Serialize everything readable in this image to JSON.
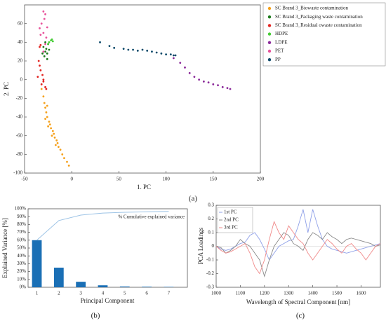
{
  "chart_data": [
    {
      "type": "scatter",
      "xlabel": "1. PC",
      "ylabel": "2. PC",
      "caption": "(a)",
      "xlim": [
        -50,
        200
      ],
      "ylim": [
        -100,
        80
      ],
      "xticks": [
        -50,
        0,
        50,
        100,
        150,
        200
      ],
      "yticks": [
        -100,
        -80,
        -60,
        -40,
        -20,
        0,
        20,
        40,
        60
      ],
      "legend": "outside right",
      "series": [
        {
          "name": "SC Brand 3_Biowaste contamination",
          "color": "#f5a01a",
          "x": [
            -32,
            -30,
            -29,
            -28,
            -27,
            -26,
            -24,
            -25,
            -22,
            -20,
            -21,
            -18,
            -16,
            -17,
            -14,
            -12,
            -10,
            -8,
            -5,
            -3,
            -28,
            -23,
            -19,
            -26,
            -15
          ],
          "y": [
            -10,
            -18,
            -25,
            -30,
            -35,
            -40,
            -45,
            -50,
            -52,
            -55,
            -60,
            -62,
            -65,
            -70,
            -72,
            -75,
            -80,
            -84,
            -88,
            -92,
            -42,
            -48,
            -58,
            -28,
            -68
          ]
        },
        {
          "name": "SC Brand 3_Packaging waste contamination",
          "color": "#1b7a1b",
          "x": [
            -30,
            -28,
            -26,
            -29,
            -27,
            -25,
            -31,
            -26,
            -28,
            -24
          ],
          "y": [
            35,
            30,
            28,
            25,
            33,
            38,
            28,
            22,
            40,
            32
          ]
        },
        {
          "name": "SC Brand 3_Residual owaste contamination",
          "color": "#e32420",
          "x": [
            -33,
            -34,
            -35,
            -33,
            -36,
            -30,
            -32,
            -28,
            -34,
            -31,
            -27,
            -30
          ],
          "y": [
            37,
            35,
            20,
            10,
            3,
            0,
            -5,
            -8,
            15,
            5,
            -10,
            -2
          ]
        },
        {
          "name": "HDPE",
          "color": "#45cc35",
          "x": [
            -22,
            -20,
            -24,
            -21,
            -25
          ],
          "y": [
            42,
            41,
            40,
            43,
            38
          ]
        },
        {
          "name": "LDPE",
          "color": "#8b2a9a",
          "x": [
            108,
            115,
            120,
            125,
            130,
            135,
            140,
            145,
            150,
            155,
            160,
            165,
            168
          ],
          "y": [
            23,
            18,
            13,
            7,
            3,
            0,
            -2,
            -3,
            -5,
            -6,
            -8,
            -9,
            -10
          ]
        },
        {
          "name": "PET",
          "color": "#e8529a",
          "x": [
            -30,
            -28,
            -32,
            -34,
            -30,
            -29,
            -27,
            -33,
            -26,
            -28,
            -30
          ],
          "y": [
            73,
            70,
            60,
            55,
            50,
            65,
            45,
            48,
            56,
            38,
            30
          ]
        },
        {
          "name": "PP",
          "color": "#0d4a6a",
          "x": [
            30,
            40,
            45,
            55,
            60,
            65,
            70,
            75,
            80,
            85,
            90,
            95,
            100,
            105,
            108,
            110
          ],
          "y": [
            40,
            36,
            34,
            33,
            32,
            32,
            31,
            32,
            31,
            30,
            29,
            28,
            27,
            27,
            26,
            26
          ]
        }
      ]
    },
    {
      "type": "bar",
      "xlabel": "Principal Component",
      "ylabel": "Explained Variance [%]",
      "caption": "(b)",
      "categories": [
        "1",
        "2",
        "3",
        "4",
        "5",
        "6",
        "7"
      ],
      "values": [
        60,
        25,
        7,
        2.5,
        1,
        0.7,
        0.5
      ],
      "color": "#1a6fb5",
      "ylim": [
        0,
        100
      ],
      "yticks": [
        {
          "value": 0,
          "label": "0%"
        },
        {
          "value": 10,
          "label": "10%"
        },
        {
          "value": 20,
          "label": "20%"
        },
        {
          "value": 30,
          "label": "30%"
        },
        {
          "value": 40,
          "label": "40%"
        },
        {
          "value": 50,
          "label": "50%"
        },
        {
          "value": 60,
          "label": "60%"
        },
        {
          "value": 70,
          "label": "70%"
        },
        {
          "value": 80,
          "label": "80%"
        },
        {
          "value": 90,
          "label": "90%"
        },
        {
          "value": 100,
          "label": "100%"
        }
      ],
      "series": [
        {
          "name": "% Cumulative explained variance",
          "type": "line",
          "color": "#9cc3e6",
          "values": [
            60,
            85,
            92,
            94.5,
            95.5,
            96.2,
            96.7
          ]
        }
      ]
    },
    {
      "type": "line",
      "xlabel": "Wavelength of Spectral Component [nm]",
      "ylabel": "PCA Loadings",
      "caption": "(c)",
      "xlim": [
        1000,
        1680
      ],
      "ylim": [
        -0.3,
        0.3
      ],
      "xticks": [
        1000,
        1100,
        1200,
        1300,
        1400,
        1500,
        1600
      ],
      "yticks": [
        -0.3,
        -0.2,
        -0.1,
        0,
        0.1,
        0.2,
        0.3
      ],
      "legend": "upper left",
      "x": [
        1000,
        1020,
        1040,
        1060,
        1080,
        1100,
        1120,
        1140,
        1160,
        1180,
        1200,
        1220,
        1240,
        1260,
        1280,
        1300,
        1320,
        1340,
        1360,
        1380,
        1400,
        1420,
        1440,
        1460,
        1480,
        1500,
        1520,
        1540,
        1560,
        1580,
        1600,
        1620,
        1640,
        1660,
        1680
      ],
      "series": [
        {
          "name": "1st PC",
          "color": "#8fa0e8",
          "values": [
            0,
            -0.02,
            -0.03,
            -0.02,
            0,
            0.02,
            0.03,
            0.08,
            0.1,
            0.05,
            -0.02,
            -0.1,
            -0.05,
            0,
            0.02,
            0.04,
            0.05,
            0.15,
            0.27,
            0.1,
            0.27,
            0.15,
            0.05,
            0,
            -0.02,
            -0.03,
            -0.04,
            -0.05,
            -0.04,
            -0.03,
            -0.02,
            -0.01,
            0,
            0.01,
            0.02
          ]
        },
        {
          "name": "2nd PC",
          "color": "#8a8a8a",
          "values": [
            0,
            -0.01,
            -0.05,
            -0.03,
            0,
            0.05,
            0.02,
            0,
            -0.05,
            -0.1,
            -0.22,
            -0.1,
            0,
            0.05,
            0.1,
            0.08,
            0.02,
            0,
            -0.03,
            0.05,
            0.1,
            0.08,
            0.05,
            0.1,
            0.07,
            0.05,
            0.02,
            0.05,
            0.06,
            0.05,
            0.04,
            0.03,
            0.02,
            0,
            0.01
          ]
        },
        {
          "name": "3rd PC",
          "color": "#f08a8a",
          "values": [
            0,
            -0.03,
            -0.05,
            -0.04,
            -0.02,
            0,
            0.02,
            -0.05,
            -0.15,
            -0.2,
            -0.1,
            0.05,
            0.18,
            0.1,
            0.05,
            0.15,
            0.1,
            0.05,
            0.02,
            -0.05,
            -0.1,
            -0.05,
            0,
            0.05,
            0.02,
            -0.02,
            -0.05,
            0,
            0.02,
            -0.02,
            -0.05,
            -0.1,
            -0.05,
            0,
            0.02
          ]
        }
      ]
    }
  ]
}
